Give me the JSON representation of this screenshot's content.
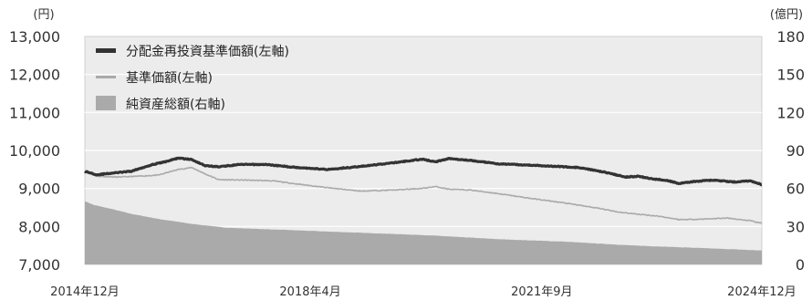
{
  "chart_data": {
    "type": "line",
    "left_unit": "(円)",
    "right_unit": "(億円)",
    "left_axis": {
      "min": 7000,
      "max": 13000,
      "ticks": [
        "7,000",
        "8,000",
        "9,000",
        "10,000",
        "11,000",
        "12,000",
        "13,000"
      ]
    },
    "right_axis": {
      "min": 0,
      "max": 180,
      "ticks": [
        "0",
        "30",
        "60",
        "90",
        "120",
        "150",
        "180"
      ]
    },
    "x_ticks": [
      "2014年12月",
      "2018年4月",
      "2021年9月",
      "2024年12月"
    ],
    "x_range": [
      2014.92,
      2024.92
    ],
    "x_tick_positions": [
      2014.92,
      2018.25,
      2021.67,
      2024.92
    ],
    "legend": [
      {
        "label": "分配金再投資基準価額(左軸)",
        "color": "#333333",
        "style": "line-thick"
      },
      {
        "label": "基準価額(左軸)",
        "color": "#aaaaaa",
        "style": "line-thin"
      },
      {
        "label": "純資産総額(右軸)",
        "color": "#aaaaaa",
        "style": "area"
      }
    ],
    "series": [
      {
        "name": "分配金再投資基準価額(左軸)",
        "axis": "left",
        "color": "#333333",
        "x": [
          2014.92,
          2015.1,
          2015.3,
          2015.6,
          2015.9,
          2016.1,
          2016.3,
          2016.5,
          2016.7,
          2016.9,
          2017.2,
          2017.6,
          2018.0,
          2018.5,
          2019.0,
          2019.5,
          2019.9,
          2020.1,
          2020.3,
          2020.5,
          2020.8,
          2021.0,
          2021.4,
          2021.8,
          2022.2,
          2022.6,
          2022.9,
          2023.1,
          2023.3,
          2023.5,
          2023.7,
          2023.9,
          2024.2,
          2024.5,
          2024.75,
          2024.92
        ],
        "y": [
          9450,
          9360,
          9400,
          9450,
          9620,
          9700,
          9800,
          9760,
          9600,
          9570,
          9630,
          9630,
          9560,
          9500,
          9580,
          9680,
          9770,
          9700,
          9790,
          9760,
          9700,
          9650,
          9620,
          9590,
          9550,
          9430,
          9300,
          9320,
          9250,
          9220,
          9130,
          9180,
          9220,
          9170,
          9200,
          9100
        ]
      },
      {
        "name": "基準価額(左軸)",
        "axis": "left",
        "color": "#aaaaaa",
        "x": [
          2014.92,
          2015.1,
          2015.4,
          2015.7,
          2016.0,
          2016.3,
          2016.5,
          2016.7,
          2016.9,
          2017.3,
          2017.7,
          2018.0,
          2018.5,
          2019.0,
          2019.5,
          2019.9,
          2020.1,
          2020.3,
          2020.6,
          2021.0,
          2021.5,
          2022.0,
          2022.5,
          2022.8,
          2023.1,
          2023.4,
          2023.7,
          2024.0,
          2024.4,
          2024.75,
          2024.92
        ],
        "y": [
          9450,
          9320,
          9300,
          9320,
          9350,
          9500,
          9550,
          9380,
          9230,
          9220,
          9200,
          9130,
          9020,
          8930,
          8960,
          9000,
          9050,
          8980,
          8960,
          8870,
          8740,
          8620,
          8480,
          8380,
          8320,
          8270,
          8180,
          8190,
          8220,
          8150,
          8080
        ]
      },
      {
        "name": "純資産総額(右軸)",
        "axis": "right",
        "color": "#aaaaaa",
        "x": [
          2014.92,
          2015.05,
          2015.3,
          2015.6,
          2016.0,
          2016.5,
          2017.0,
          2017.5,
          2018.0,
          2019.0,
          2020.0,
          2021.0,
          2022.0,
          2023.0,
          2024.0,
          2024.92
        ],
        "y": [
          50,
          47,
          44,
          40,
          36,
          32,
          29,
          28,
          27,
          25,
          23,
          20,
          18,
          15,
          13,
          11
        ]
      }
    ]
  }
}
